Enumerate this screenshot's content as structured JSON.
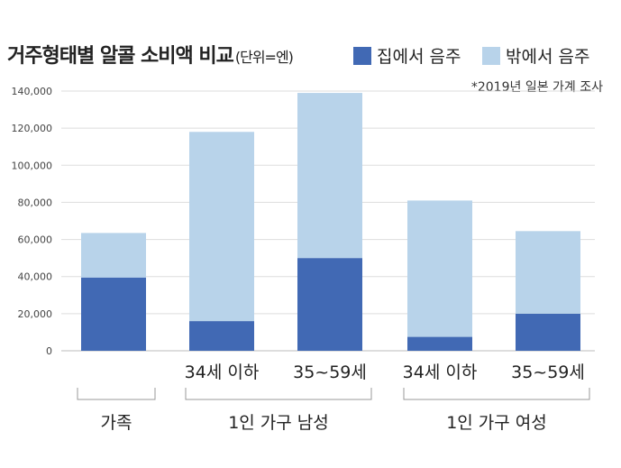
{
  "chart_data": {
    "type": "bar",
    "stacked": true,
    "title": "거주형태별 알콜 소비액 비교",
    "unit_label": "(단위=엔)",
    "source_note": "*2019년 일본 가계 조사",
    "categories": [
      "",
      "34세 이하",
      "35~59세",
      "34세 이하",
      "35~59세"
    ],
    "groups": [
      {
        "label": "가족",
        "categories": [
          0
        ]
      },
      {
        "label": "1인 가구 남성",
        "categories": [
          1,
          2
        ]
      },
      {
        "label": "1인 가구 여성",
        "categories": [
          3,
          4
        ]
      }
    ],
    "series": [
      {
        "name": "집에서 음주",
        "color": "#4169b4",
        "values": [
          39500,
          16000,
          50000,
          7500,
          20000
        ]
      },
      {
        "name": "밖에서 음주",
        "color": "#b8d3ea",
        "values": [
          24000,
          102000,
          89000,
          73500,
          44500
        ]
      }
    ],
    "ylim": [
      0,
      140000
    ],
    "yticks": [
      "0",
      "20,000",
      "40,000",
      "60,000",
      "80,000",
      "100,000",
      "120,000",
      "140,000"
    ],
    "grid": true,
    "legend_position": "top-right"
  }
}
